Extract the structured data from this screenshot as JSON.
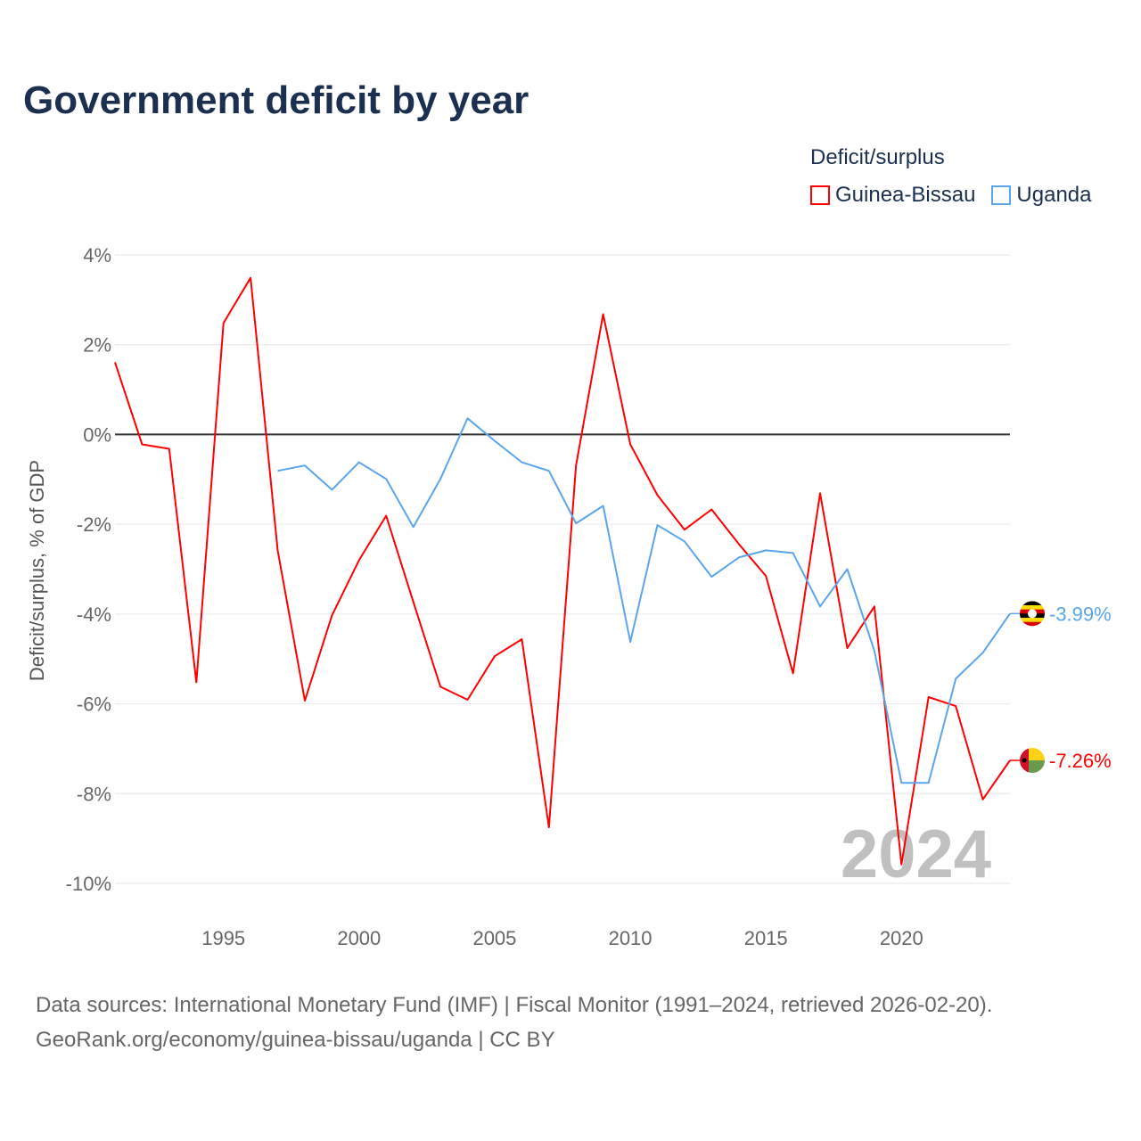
{
  "title": "Government deficit by year",
  "legend": {
    "title": "Deficit/surplus",
    "items": [
      {
        "label": "Guinea-Bissau",
        "color": "#ff0000"
      },
      {
        "label": "Uganda",
        "color": "#5aa5ec"
      }
    ]
  },
  "source": {
    "line1": "Data sources: International Monetary Fund (IMF) | Fiscal Monitor (1991–2024, retrieved 2026-02-20).",
    "line2": "GeoRank.org/economy/guinea-bissau/uganda | CC BY"
  },
  "chart_data": {
    "type": "line",
    "title": "Government deficit by year",
    "xlabel": "",
    "ylabel": "Deficit/surplus, % of GDP",
    "xlim": [
      1991,
      2024
    ],
    "ylim": [
      -10,
      4
    ],
    "x_ticks": [
      1995,
      2000,
      2005,
      2010,
      2015,
      2020
    ],
    "y_ticks": [
      4,
      2,
      0,
      -2,
      -4,
      -6,
      -8,
      -10
    ],
    "y_tick_labels": [
      "4%",
      "2%",
      "0%",
      "-2%",
      "-4%",
      "-6%",
      "-8%",
      "-10%"
    ],
    "year_watermark": "2024",
    "series": [
      {
        "name": "Guinea-Bissau",
        "color": "#ff0000",
        "end_label": "-7.26%",
        "x": [
          1991,
          1992,
          1993,
          1994,
          1995,
          1996,
          1997,
          1998,
          1999,
          2000,
          2001,
          2002,
          2003,
          2004,
          2005,
          2006,
          2007,
          2008,
          2009,
          2010,
          2011,
          2012,
          2013,
          2014,
          2015,
          2016,
          2017,
          2018,
          2019,
          2020,
          2021,
          2022,
          2023,
          2024
        ],
        "values": [
          1.61,
          -0.22,
          -0.32,
          -5.52,
          2.48,
          3.49,
          -2.58,
          -5.93,
          -4.03,
          -2.8,
          -1.81,
          -3.73,
          -5.62,
          -5.91,
          -4.94,
          -4.56,
          -8.75,
          -0.69,
          2.68,
          -0.22,
          -1.35,
          -2.12,
          -1.67,
          -2.44,
          -3.15,
          -5.32,
          -1.31,
          -4.76,
          -3.83,
          -9.58,
          -5.85,
          -6.05,
          -8.13,
          -7.26
        ]
      },
      {
        "name": "Uganda",
        "color": "#5aa5ec",
        "end_label": "-3.99%",
        "x": [
          1997,
          1998,
          1999,
          2000,
          2001,
          2002,
          2003,
          2004,
          2005,
          2006,
          2007,
          2008,
          2009,
          2010,
          2011,
          2012,
          2013,
          2014,
          2015,
          2016,
          2017,
          2018,
          2019,
          2020,
          2021,
          2022,
          2023,
          2024
        ],
        "values": [
          -0.81,
          -0.69,
          -1.23,
          -0.62,
          -0.99,
          -2.06,
          -0.99,
          0.36,
          -0.14,
          -0.62,
          -0.81,
          -1.98,
          -1.59,
          -4.62,
          -2.02,
          -2.38,
          -3.17,
          -2.74,
          -2.58,
          -2.64,
          -3.83,
          -3.0,
          -4.82,
          -7.76,
          -7.76,
          -5.44,
          -4.86,
          -3.99
        ]
      }
    ]
  }
}
